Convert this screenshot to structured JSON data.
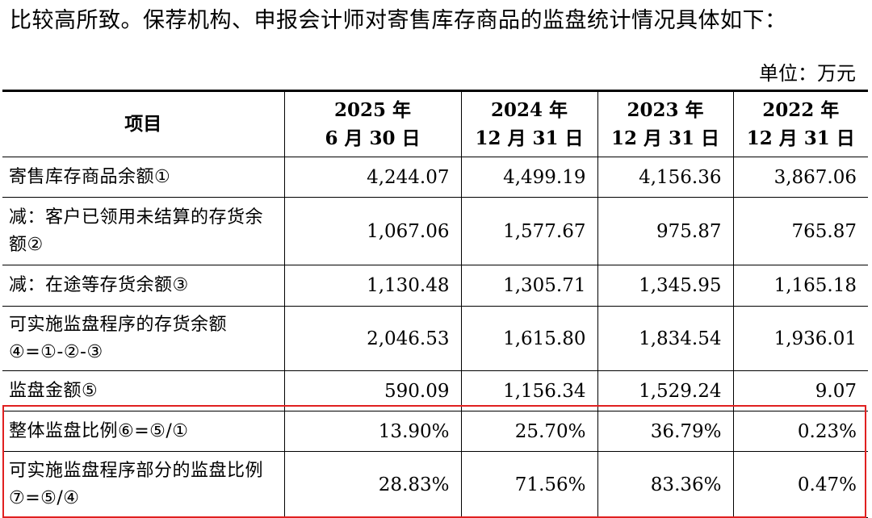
{
  "intro_text": "比较高所致。保荐机构、申报会计师对寄售库存商品的监盘统计情况具体如下：",
  "unit_label": "单位：万元",
  "table": {
    "item_header": "项目",
    "columns": [
      {
        "line1": "2025 年",
        "line2": "6 月 30 日"
      },
      {
        "line1": "2024 年",
        "line2": "12 月 31 日"
      },
      {
        "line1": "2023 年",
        "line2": "12 月 31 日"
      },
      {
        "line1": "2022 年",
        "line2": "12 月 31 日"
      }
    ],
    "rows": [
      {
        "label": "寄售库存商品余额①",
        "values": [
          "4,244.07",
          "4,499.19",
          "4,156.36",
          "3,867.06"
        ]
      },
      {
        "label": "减：客户已领用未结算的存货余额②",
        "values": [
          "1,067.06",
          "1,577.67",
          "975.87",
          "765.87"
        ]
      },
      {
        "label": "减：在途等存货余额③",
        "values": [
          "1,130.48",
          "1,305.71",
          "1,345.95",
          "1,165.18"
        ]
      },
      {
        "label": "可实施监盘程序的存货余额④=①-②-③",
        "values": [
          "2,046.53",
          "1,615.80",
          "1,834.54",
          "1,936.01"
        ]
      },
      {
        "label": "监盘金额⑤",
        "values": [
          "590.09",
          "1,156.34",
          "1,529.24",
          "9.07"
        ]
      },
      {
        "label": "整体监盘比例⑥=⑤/①",
        "values": [
          "13.90%",
          "25.70%",
          "36.79%",
          "0.23%"
        ]
      },
      {
        "label": "可实施监盘程序部分的监盘比例⑦=⑤/④",
        "values": [
          "28.83%",
          "71.56%",
          "83.36%",
          "0.47%"
        ]
      }
    ]
  },
  "highlight_color": "#e02020"
}
